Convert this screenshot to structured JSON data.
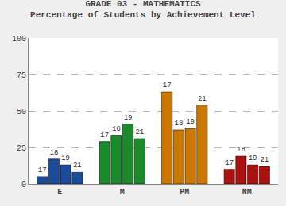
{
  "chart_data": {
    "type": "bar",
    "title": "GRADE 03 - MATHEMATICS",
    "subtitle": "Percentage of Students by Achievement Level",
    "categories": [
      "E",
      "M",
      "PM",
      "NM"
    ],
    "series": [
      {
        "name": "17",
        "values": [
          5,
          29,
          63,
          10
        ],
        "colors": [
          "#1a4a9a",
          "#1a8a2a",
          "#cc7700",
          "#aa1111"
        ]
      },
      {
        "name": "18",
        "values": [
          17,
          33,
          37,
          19
        ],
        "colors": [
          "#1a4a9a",
          "#1a8a2a",
          "#cc7700",
          "#aa1111"
        ]
      },
      {
        "name": "19",
        "values": [
          13,
          41,
          38,
          13
        ],
        "colors": [
          "#1a4a9a",
          "#1a8a2a",
          "#cc7700",
          "#aa1111"
        ]
      },
      {
        "name": "21",
        "values": [
          8,
          31,
          54,
          12
        ],
        "colors": [
          "#1a4a9a",
          "#1a8a2a",
          "#cc7700",
          "#aa1111"
        ]
      }
    ],
    "ylim": [
      0,
      100
    ],
    "yticks": [
      0,
      25,
      50,
      75,
      100
    ],
    "grid": true
  }
}
